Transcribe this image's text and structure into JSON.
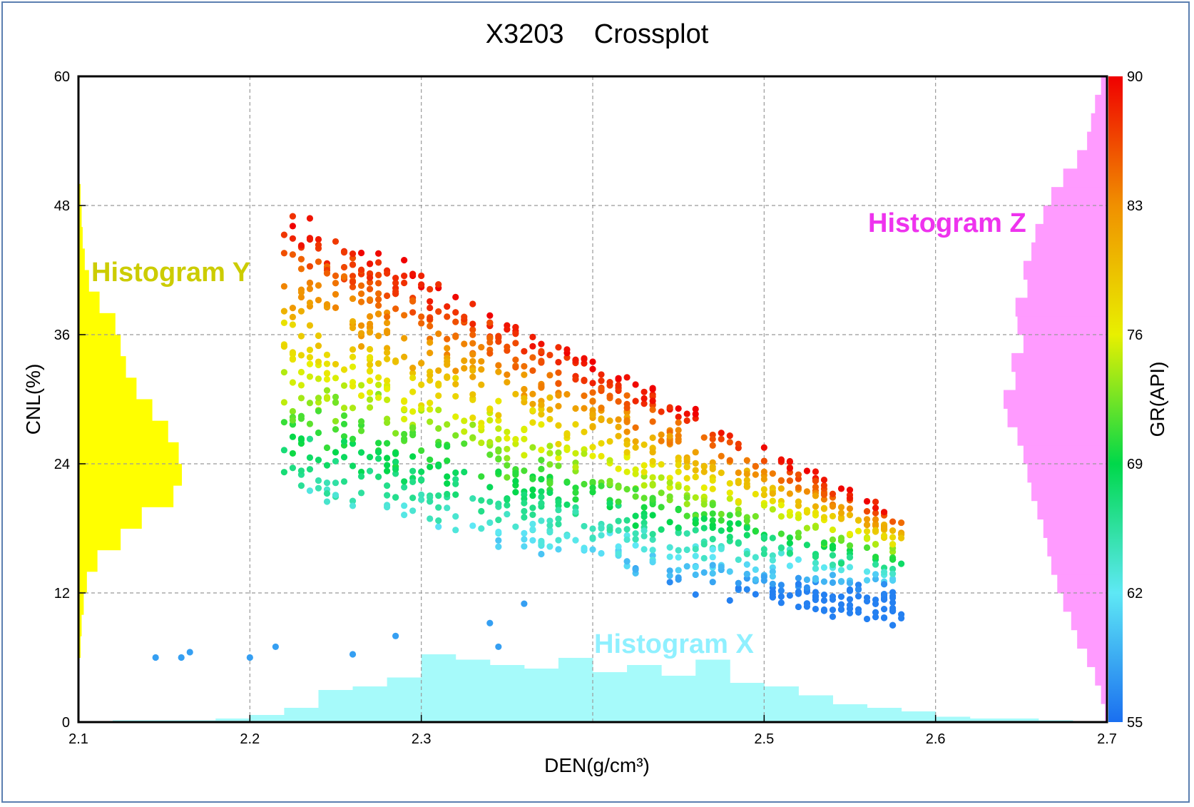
{
  "chart_data": {
    "type": "scatter",
    "title": "X3203    Crossplot",
    "xlabel": "DEN(g/cm³)",
    "ylabel": "CNL(%)",
    "zlabel": "GR(API)",
    "xlim": [
      2.1,
      2.7
    ],
    "ylim": [
      0,
      60
    ],
    "zlim": [
      55,
      90
    ],
    "x_ticks": [
      "2.1",
      "2.2",
      "2.3",
      "2.5",
      "2.6",
      "2.7"
    ],
    "y_ticks": [
      "0",
      "12",
      "24",
      "36",
      "48",
      "60"
    ],
    "z_ticks": [
      "55",
      "62",
      "69",
      "76",
      "83",
      "90"
    ],
    "grid": true,
    "colormap": [
      "#1a6ff0",
      "#5ee8f5",
      "#00d84a",
      "#e8f000",
      "#f09000",
      "#f00000"
    ],
    "histogram_labels": {
      "x": {
        "text": "Histogram X",
        "color": "#8ff0ff"
      },
      "y": {
        "text": "Histogram Y",
        "color": "#cccc00"
      },
      "z": {
        "text": "Histogram Z",
        "color": "#ee33ee"
      }
    },
    "histogram_colors": {
      "x": "#a6fafa",
      "y": "#ffff00",
      "z": "#ff9bff"
    },
    "histogram_y": {
      "bins": [
        0,
        2,
        4,
        6,
        8,
        10,
        12,
        14,
        16,
        18,
        20,
        22,
        24,
        26,
        28,
        30,
        32,
        34,
        36,
        38,
        40,
        42,
        44,
        46,
        48,
        50,
        52,
        54,
        56,
        58
      ],
      "counts": [
        1,
        1,
        1,
        2,
        3,
        5,
        8,
        18,
        40,
        60,
        90,
        98,
        95,
        85,
        70,
        55,
        45,
        40,
        35,
        20,
        10,
        6,
        4,
        3,
        2,
        1,
        1,
        1,
        1,
        0
      ]
    },
    "histogram_x": {
      "bins": [
        2.1,
        2.12,
        2.14,
        2.16,
        2.18,
        2.2,
        2.22,
        2.24,
        2.26,
        2.28,
        2.3,
        2.32,
        2.34,
        2.36,
        2.38,
        2.4,
        2.42,
        2.44,
        2.46,
        2.48,
        2.5,
        2.52,
        2.54,
        2.56,
        2.58,
        2.6,
        2.62,
        2.64,
        2.66,
        2.68
      ],
      "counts": [
        0,
        1,
        1,
        1,
        2,
        4,
        8,
        18,
        20,
        25,
        38,
        35,
        32,
        30,
        36,
        28,
        32,
        26,
        35,
        22,
        20,
        15,
        10,
        8,
        6,
        3,
        2,
        2,
        1,
        0
      ]
    },
    "histogram_z": {
      "bins": [
        55,
        56,
        57,
        58,
        59,
        60,
        61,
        62,
        63,
        64,
        65,
        66,
        67,
        68,
        69,
        70,
        71,
        72,
        73,
        74,
        75,
        76,
        77,
        78,
        79,
        80,
        81,
        82,
        83,
        84,
        85,
        86,
        87,
        88,
        89
      ],
      "counts": [
        1,
        3,
        6,
        10,
        15,
        18,
        22,
        25,
        28,
        30,
        32,
        35,
        38,
        40,
        42,
        45,
        50,
        52,
        46,
        48,
        42,
        45,
        46,
        40,
        42,
        38,
        36,
        32,
        28,
        22,
        15,
        10,
        8,
        6,
        3
      ]
    },
    "series_seed": 3203,
    "n_points": 1400
  }
}
